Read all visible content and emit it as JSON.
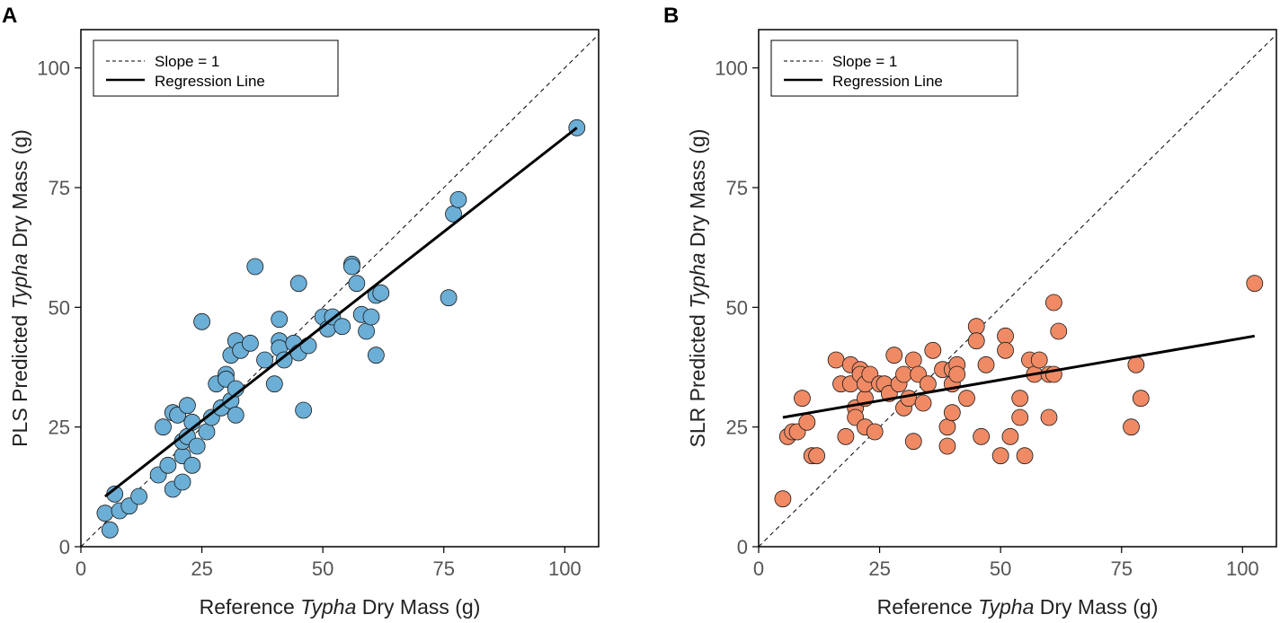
{
  "chart_data": [
    {
      "type": "scatter",
      "panel_label": "A",
      "xlabel": {
        "pre": "Reference ",
        "italic": "Typha",
        "post": " Dry Mass (g)"
      },
      "ylabel": {
        "pre": "PLS Predicted ",
        "italic": "Typha",
        "post": " Dry Mass (g)"
      },
      "xlim": [
        0,
        107
      ],
      "ylim": [
        0,
        108
      ],
      "xticks": [
        0,
        25,
        50,
        75,
        100
      ],
      "yticks": [
        0,
        25,
        50,
        75,
        100
      ],
      "legend": {
        "position": "top-left",
        "entries": [
          "Slope = 1",
          "Regression Line"
        ]
      },
      "point_color": "#6BAED6",
      "reference_line": {
        "slope": 1,
        "intercept": 0
      },
      "regression_line": {
        "x": [
          5,
          102.5
        ],
        "y": [
          10.5,
          87.5
        ]
      },
      "points": {
        "x": [
          5,
          6,
          7,
          8,
          10,
          12,
          16,
          17,
          18,
          19,
          19,
          20,
          21,
          21,
          21,
          22,
          22,
          23,
          23,
          24,
          25,
          26,
          27,
          28,
          29,
          30,
          30,
          31,
          31,
          32,
          32,
          32,
          33,
          35,
          36,
          38,
          40,
          41,
          41,
          41,
          42,
          44,
          45,
          45,
          46,
          47,
          50,
          51,
          52,
          54,
          56,
          56,
          57,
          58,
          59,
          60,
          61,
          61,
          62,
          76,
          77,
          78,
          102.5
        ],
        "y": [
          7,
          3.5,
          11,
          7.5,
          8.5,
          10.5,
          15,
          25,
          17,
          28,
          12,
          27.5,
          13.5,
          19,
          22,
          23,
          29.5,
          26,
          17,
          21,
          47,
          24,
          27,
          34,
          29,
          36,
          35,
          30.5,
          40,
          27.5,
          43,
          33,
          41,
          42.5,
          58.5,
          39,
          34,
          47.5,
          43,
          41.5,
          39,
          42.5,
          55,
          40.5,
          28.5,
          42,
          48,
          45.5,
          48,
          46,
          59,
          58.5,
          55,
          48.5,
          45,
          48,
          40,
          52.5,
          53,
          52,
          69.5,
          72.5,
          87.5
        ]
      }
    },
    {
      "type": "scatter",
      "panel_label": "B",
      "xlabel": {
        "pre": "Reference ",
        "italic": "Typha",
        "post": " Dry Mass (g)"
      },
      "ylabel": {
        "pre": "SLR Predicted ",
        "italic": "Typha",
        "post": " Dry Mass (g)"
      },
      "xlim": [
        0,
        107
      ],
      "ylim": [
        0,
        108
      ],
      "xticks": [
        0,
        25,
        50,
        75,
        100
      ],
      "yticks": [
        0,
        25,
        50,
        75,
        100
      ],
      "legend": {
        "position": "top-left",
        "entries": [
          "Slope = 1",
          "Regression Line"
        ]
      },
      "point_color": "#F08A64",
      "reference_line": {
        "slope": 1,
        "intercept": 0
      },
      "regression_line": {
        "x": [
          5,
          102.5
        ],
        "y": [
          27,
          44
        ]
      },
      "points": {
        "x": [
          5,
          6,
          7,
          8,
          9,
          10,
          11,
          12,
          16,
          17,
          18,
          19,
          19,
          20,
          20,
          21,
          21,
          22,
          22,
          22,
          23,
          24,
          25,
          26,
          27,
          28,
          29,
          30,
          30,
          31,
          32,
          32,
          33,
          34,
          35,
          36,
          38,
          39,
          39,
          40,
          40,
          40,
          41,
          41,
          43,
          45,
          45,
          46,
          47,
          50,
          51,
          51,
          52,
          54,
          54,
          55,
          56,
          57,
          58,
          60,
          60,
          61,
          61,
          62,
          77,
          78,
          79,
          102.5
        ],
        "y": [
          10,
          23,
          24,
          24,
          31,
          26,
          19,
          19,
          39,
          34,
          23,
          38,
          34,
          29,
          27,
          37,
          36,
          31,
          25,
          34,
          36,
          24,
          34,
          34,
          32,
          40,
          34,
          36,
          29,
          31,
          22,
          39,
          36,
          30,
          34,
          41,
          37,
          25,
          21,
          37,
          34,
          28,
          38,
          36,
          31,
          46,
          43,
          23,
          38,
          19,
          44,
          41,
          23,
          31,
          27,
          19,
          39,
          36,
          39,
          27,
          36,
          51,
          36,
          45,
          25,
          38,
          31,
          55
        ]
      }
    }
  ]
}
